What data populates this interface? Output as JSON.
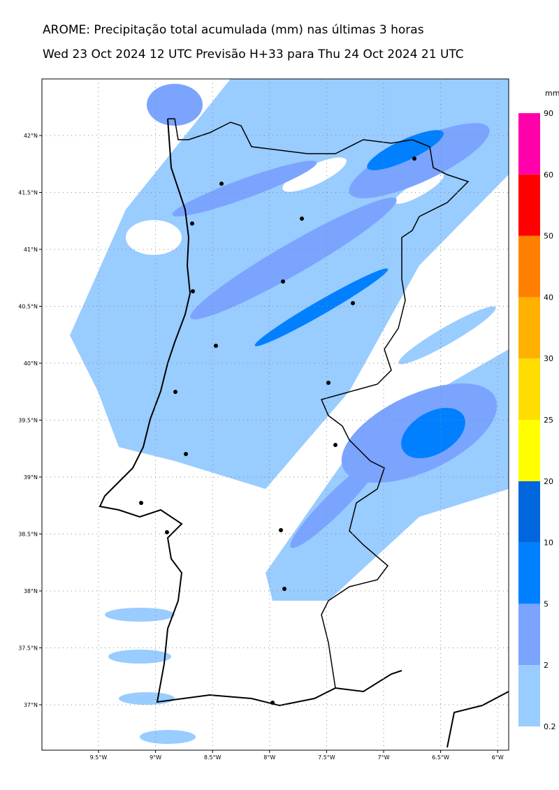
{
  "header": {
    "title": "AROME: Precipitação total acumulada (mm) nas últimas 3 horas",
    "subtitle": "Wed 23 Oct 2024 12 UTC Previsão H+33 para Thu 24 Oct 2024 21 UTC"
  },
  "map": {
    "lon_ticks": [
      "9.5°W",
      "9°W",
      "8.5°W",
      "8°W",
      "7.5°W",
      "7°W",
      "6.5°W",
      "6°W"
    ],
    "lat_ticks": [
      "42°N",
      "41.5°N",
      "41°N",
      "40.5°N",
      "40°N",
      "39.5°N",
      "39°N",
      "38.5°N",
      "38°N",
      "37.5°N",
      "37°N"
    ]
  },
  "colorbar": {
    "unit": "mm",
    "levels": [
      0.2,
      2,
      5,
      10,
      20,
      25,
      30,
      40,
      50,
      60,
      90
    ],
    "colors": [
      "#99ccff",
      "#7ba4ff",
      "#0080ff",
      "#0066dd",
      "#ffff00",
      "#ffdd00",
      "#ffb000",
      "#ff8000",
      "#ff0000",
      "#ff00aa"
    ]
  }
}
